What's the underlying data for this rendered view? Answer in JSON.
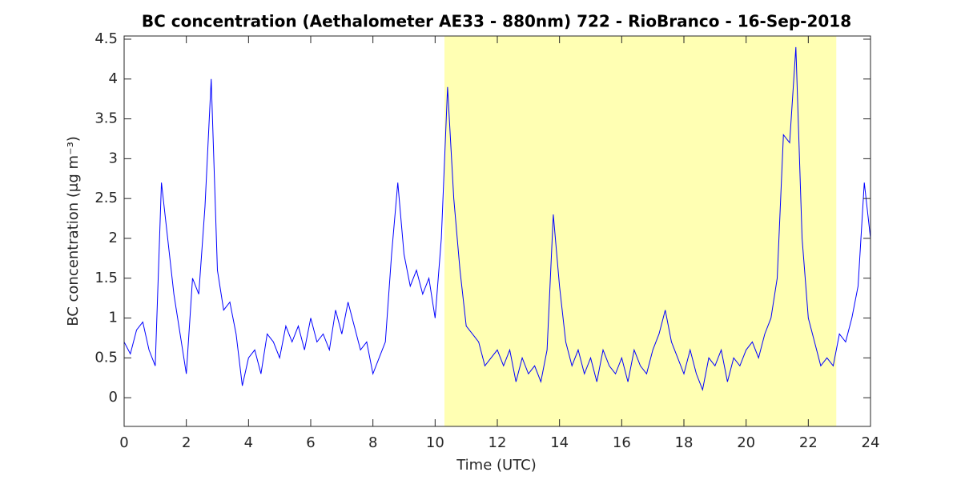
{
  "chart_data": {
    "type": "line",
    "title": "BC concentration (Aethalometer AE33 - 880nm) 722 - RioBranco - 16-Sep-2018",
    "x_label": "Time (UTC)",
    "y_label": "BC concentration (μg m⁻³)",
    "x": [
      0,
      0.2,
      0.4,
      0.6,
      0.8,
      1,
      1.2,
      1.4,
      1.6,
      1.8,
      2,
      2.2,
      2.4,
      2.6,
      2.8,
      3,
      3.2,
      3.4,
      3.6,
      3.8,
      4,
      4.2,
      4.4,
      4.6,
      4.8,
      5,
      5.2,
      5.4,
      5.6,
      5.8,
      6,
      6.2,
      6.4,
      6.6,
      6.8,
      7,
      7.2,
      7.4,
      7.6,
      7.8,
      8,
      8.2,
      8.4,
      8.6,
      8.8,
      9,
      9.2,
      9.4,
      9.6,
      9.8,
      10,
      10.2,
      10.4,
      10.6,
      10.8,
      11,
      11.2,
      11.4,
      11.6,
      11.8,
      12,
      12.2,
      12.4,
      12.6,
      12.8,
      13,
      13.2,
      13.4,
      13.6,
      13.8,
      14,
      14.2,
      14.4,
      14.6,
      14.8,
      15,
      15.2,
      15.4,
      15.6,
      15.8,
      16,
      16.2,
      16.4,
      16.6,
      16.8,
      17,
      17.2,
      17.4,
      17.6,
      17.8,
      18,
      18.2,
      18.4,
      18.6,
      18.8,
      19,
      19.2,
      19.4,
      19.6,
      19.8,
      20,
      20.2,
      20.4,
      20.6,
      20.8,
      21,
      21.2,
      21.4,
      21.6,
      21.8,
      22,
      22.2,
      22.4,
      22.6,
      22.8,
      23,
      23.2,
      23.4,
      23.6,
      23.8,
      24
    ],
    "series": [
      {
        "name": "BC",
        "color": "#0000ff",
        "values": [
          0.7,
          0.55,
          0.85,
          0.95,
          0.6,
          0.4,
          2.7,
          2.0,
          1.3,
          0.8,
          0.3,
          1.5,
          1.3,
          2.4,
          4.0,
          1.6,
          1.1,
          1.2,
          0.8,
          0.15,
          0.5,
          0.6,
          0.3,
          0.8,
          0.7,
          0.5,
          0.9,
          0.7,
          0.9,
          0.6,
          1.0,
          0.7,
          0.8,
          0.6,
          1.1,
          0.8,
          1.2,
          0.9,
          0.6,
          0.7,
          0.3,
          0.5,
          0.7,
          1.8,
          2.7,
          1.8,
          1.4,
          1.6,
          1.3,
          1.5,
          1.0,
          2.0,
          3.9,
          2.5,
          1.6,
          0.9,
          0.8,
          0.7,
          0.4,
          0.5,
          0.6,
          0.4,
          0.6,
          0.2,
          0.5,
          0.3,
          0.4,
          0.2,
          0.6,
          2.3,
          1.4,
          0.7,
          0.4,
          0.6,
          0.3,
          0.5,
          0.2,
          0.6,
          0.4,
          0.3,
          0.5,
          0.2,
          0.6,
          0.4,
          0.3,
          0.6,
          0.8,
          1.1,
          0.7,
          0.5,
          0.3,
          0.6,
          0.3,
          0.1,
          0.5,
          0.4,
          0.6,
          0.2,
          0.5,
          0.4,
          0.6,
          0.7,
          0.5,
          0.8,
          1.0,
          1.5,
          3.3,
          3.2,
          4.4,
          2.0,
          1.0,
          0.7,
          0.4,
          0.5,
          0.4,
          0.8,
          0.7,
          1.0,
          1.4,
          2.7,
          2.0
        ]
      }
    ],
    "shade": {
      "x": [
        10.3,
        22.9
      ],
      "color": "#ffffb3"
    },
    "xlim": [
      0,
      24
    ],
    "xticks": [
      0,
      2,
      4,
      6,
      8,
      10,
      12,
      14,
      16,
      18,
      20,
      22,
      24
    ],
    "ylim": [
      -0.36,
      4.54
    ],
    "yticks": [
      0,
      0.5,
      1,
      1.5,
      2,
      2.5,
      3,
      3.5,
      4,
      4.5
    ],
    "grid": false
  }
}
